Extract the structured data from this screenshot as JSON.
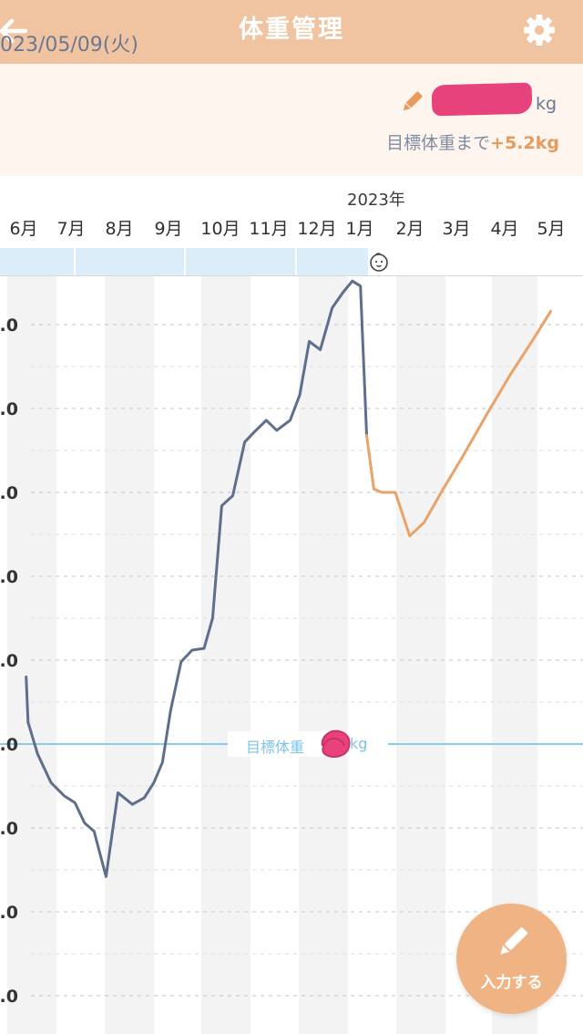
{
  "header": {
    "title": "体重管理",
    "back_icon": "arrow-left-icon",
    "settings_icon": "gear-icon"
  },
  "info": {
    "date": "2023/05/09(火)",
    "edit_icon": "pencil-icon",
    "weight_unit": "kg",
    "goal_prefix": "目標体重まで",
    "goal_diff": "+5.2kg"
  },
  "timeline": {
    "year_label": "2023年",
    "months": [
      "6月",
      "7月",
      "8月",
      "9月",
      "10月",
      "11月",
      "12月",
      "1月",
      "2月",
      "3月",
      "4月",
      "5月"
    ],
    "baby_icon": "baby-face-icon"
  },
  "chart": {
    "y_tick_labels": [
      ".0",
      ".0",
      ".0",
      ".0",
      ".0",
      ".0",
      ".0",
      ".0",
      ".0"
    ],
    "goal_label": "目標体重",
    "goal_unit": "kg"
  },
  "chart_data": {
    "type": "line",
    "xlabel": "",
    "ylabel": "",
    "x_categories": [
      "6月",
      "7月",
      "8月",
      "9月",
      "10月",
      "11月",
      "12月",
      "1月",
      "2月",
      "3月",
      "4月",
      "5月"
    ],
    "goal_line_value": 0,
    "series": [
      {
        "color": "#5d6f8a",
        "points": [
          [
            -0.12,
            0.8
          ],
          [
            -0.08,
            0.26
          ],
          [
            0.12,
            -0.12
          ],
          [
            0.4,
            -0.46
          ],
          [
            0.68,
            -0.62
          ],
          [
            0.9,
            -0.7
          ],
          [
            1.1,
            -0.94
          ],
          [
            1.3,
            -1.04
          ],
          [
            1.55,
            -1.58
          ],
          [
            1.8,
            -0.58
          ],
          [
            2.1,
            -0.72
          ],
          [
            2.35,
            -0.64
          ],
          [
            2.55,
            -0.46
          ],
          [
            2.73,
            -0.22
          ],
          [
            2.9,
            0.4
          ],
          [
            3.12,
            0.98
          ],
          [
            3.35,
            1.12
          ],
          [
            3.6,
            1.14
          ],
          [
            3.78,
            1.5
          ],
          [
            3.97,
            2.84
          ],
          [
            4.2,
            2.96
          ],
          [
            4.45,
            3.6
          ],
          [
            4.65,
            3.72
          ],
          [
            4.9,
            3.86
          ],
          [
            5.12,
            3.74
          ],
          [
            5.4,
            3.86
          ],
          [
            5.6,
            4.16
          ],
          [
            5.8,
            4.8
          ],
          [
            6.03,
            4.7
          ],
          [
            6.28,
            5.2
          ],
          [
            6.5,
            5.38
          ],
          [
            6.7,
            5.52
          ],
          [
            6.87,
            5.46
          ],
          [
            7.0,
            3.68
          ]
        ]
      },
      {
        "color": "#e9a267",
        "points": [
          [
            7.0,
            3.68
          ],
          [
            7.15,
            3.04
          ],
          [
            7.32,
            3.0
          ],
          [
            7.6,
            3.0
          ],
          [
            7.9,
            2.48
          ],
          [
            8.2,
            2.64
          ],
          [
            8.6,
            3.04
          ],
          [
            9.0,
            3.42
          ],
          [
            9.5,
            3.92
          ],
          [
            10.0,
            4.4
          ],
          [
            10.5,
            4.84
          ],
          [
            10.85,
            5.16
          ]
        ]
      }
    ]
  },
  "fab": {
    "label": "入力する",
    "icon": "pencil-icon"
  }
}
